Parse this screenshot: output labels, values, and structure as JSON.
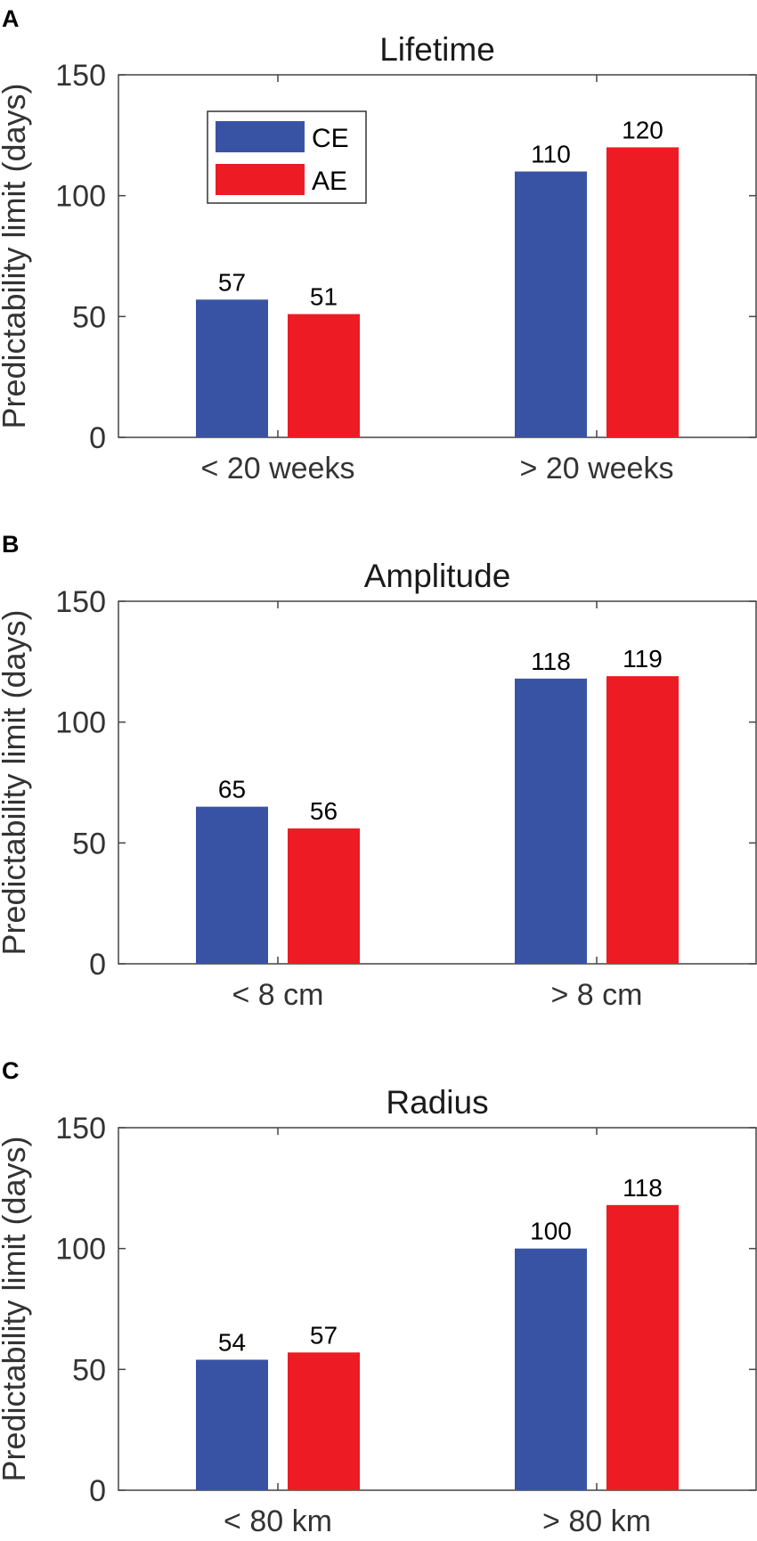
{
  "colors": {
    "CE": "#3953a4",
    "AE": "#ed1c24",
    "axis": "#444444",
    "text": "#333333"
  },
  "legend": {
    "entries": [
      "CE",
      "AE"
    ],
    "placement": "top-left inside panel A"
  },
  "chart_data": [
    {
      "panel": "A",
      "type": "bar",
      "title": "Lifetime",
      "ylabel": "Predictability limit (days)",
      "xlabel": "",
      "ylim": [
        0,
        150
      ],
      "yticks": [
        0,
        50,
        100,
        150
      ],
      "categories": [
        "< 20 weeks",
        "> 20 weeks"
      ],
      "series": [
        {
          "name": "CE",
          "values": [
            57,
            110
          ]
        },
        {
          "name": "AE",
          "values": [
            51,
            120
          ]
        }
      ]
    },
    {
      "panel": "B",
      "type": "bar",
      "title": "Amplitude",
      "ylabel": "Predictability limit (days)",
      "xlabel": "",
      "ylim": [
        0,
        150
      ],
      "yticks": [
        0,
        50,
        100,
        150
      ],
      "categories": [
        "< 8 cm",
        "> 8 cm"
      ],
      "series": [
        {
          "name": "CE",
          "values": [
            65,
            118
          ]
        },
        {
          "name": "AE",
          "values": [
            56,
            119
          ]
        }
      ]
    },
    {
      "panel": "C",
      "type": "bar",
      "title": "Radius",
      "ylabel": "Predictability limit (days)",
      "xlabel": "",
      "ylim": [
        0,
        150
      ],
      "yticks": [
        0,
        50,
        100,
        150
      ],
      "categories": [
        "< 80 km",
        "> 80 km"
      ],
      "series": [
        {
          "name": "CE",
          "values": [
            54,
            100
          ]
        },
        {
          "name": "AE",
          "values": [
            57,
            118
          ]
        }
      ]
    }
  ]
}
